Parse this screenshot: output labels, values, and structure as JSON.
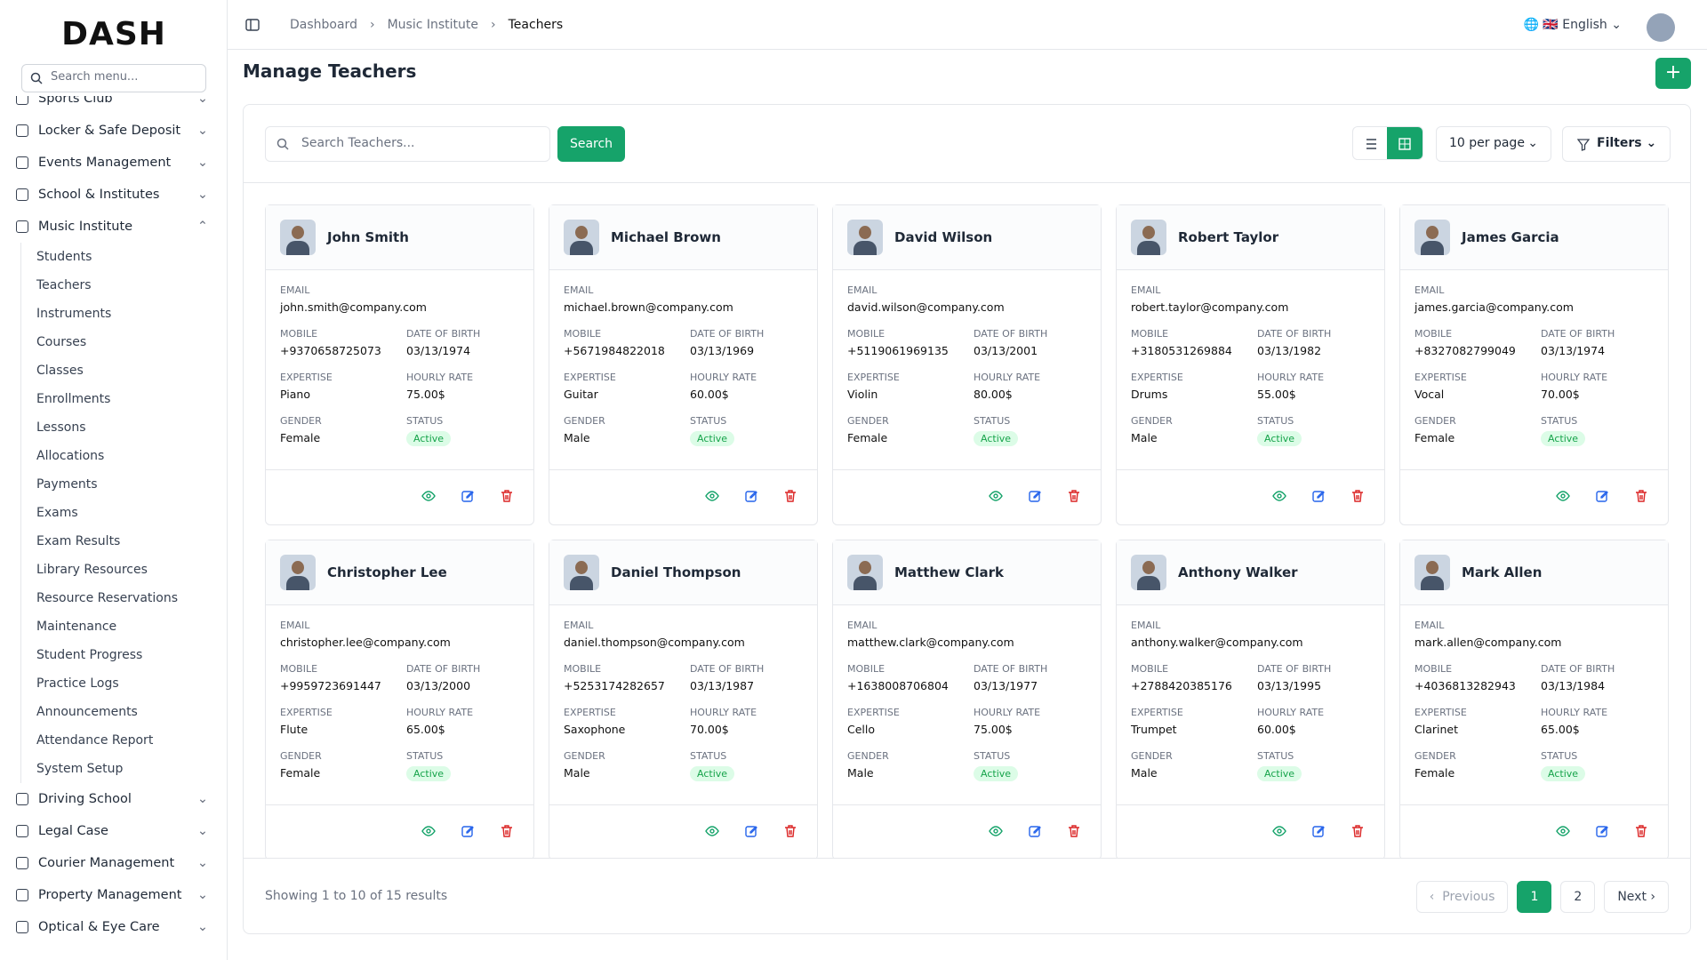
{
  "sidebar": {
    "logo": "DASH",
    "search_placeholder": "Search menu...",
    "menu": [
      {
        "label": "Sports Club"
      },
      {
        "label": "Locker & Safe Deposit"
      },
      {
        "label": "Events Management"
      },
      {
        "label": "School & Institutes"
      },
      {
        "label": "Music Institute",
        "expanded": true,
        "children": [
          "Students",
          "Teachers",
          "Instruments",
          "Courses",
          "Classes",
          "Enrollments",
          "Lessons",
          "Allocations",
          "Payments",
          "Exams",
          "Exam Results",
          "Library Resources",
          "Resource Reservations",
          "Maintenance",
          "Student Progress",
          "Practice Logs",
          "Announcements",
          "Attendance Report",
          "System Setup"
        ]
      },
      {
        "label": "Driving School"
      },
      {
        "label": "Legal Case"
      },
      {
        "label": "Courier Management"
      },
      {
        "label": "Property Management"
      },
      {
        "label": "Optical & Eye Care"
      }
    ]
  },
  "header": {
    "breadcrumbs": [
      "Dashboard",
      "Music Institute",
      "Teachers"
    ],
    "language": "English"
  },
  "page": {
    "title": "Manage Teachers",
    "search_placeholder": "Search Teachers...",
    "search_button": "Search",
    "per_page": "10 per page",
    "filters": "Filters"
  },
  "field_labels": {
    "email": "EMAIL",
    "mobile": "MOBILE",
    "dob": "DATE OF BIRTH",
    "expertise": "EXPERTISE",
    "hourly_rate": "HOURLY RATE",
    "gender": "GENDER",
    "status": "STATUS"
  },
  "teachers": [
    {
      "name": "John Smith",
      "email": "john.smith@company.com",
      "mobile": "+9370658725073",
      "dob": "03/13/1974",
      "expertise": "Piano",
      "hourly_rate": "75.00$",
      "gender": "Female",
      "status": "Active"
    },
    {
      "name": "Michael Brown",
      "email": "michael.brown@company.com",
      "mobile": "+5671984822018",
      "dob": "03/13/1969",
      "expertise": "Guitar",
      "hourly_rate": "60.00$",
      "gender": "Male",
      "status": "Active"
    },
    {
      "name": "David Wilson",
      "email": "david.wilson@company.com",
      "mobile": "+5119061969135",
      "dob": "03/13/2001",
      "expertise": "Violin",
      "hourly_rate": "80.00$",
      "gender": "Female",
      "status": "Active"
    },
    {
      "name": "Robert Taylor",
      "email": "robert.taylor@company.com",
      "mobile": "+3180531269884",
      "dob": "03/13/1982",
      "expertise": "Drums",
      "hourly_rate": "55.00$",
      "gender": "Male",
      "status": "Active"
    },
    {
      "name": "James Garcia",
      "email": "james.garcia@company.com",
      "mobile": "+8327082799049",
      "dob": "03/13/1974",
      "expertise": "Vocal",
      "hourly_rate": "70.00$",
      "gender": "Female",
      "status": "Active"
    },
    {
      "name": "Christopher Lee",
      "email": "christopher.lee@company.com",
      "mobile": "+9959723691447",
      "dob": "03/13/2000",
      "expertise": "Flute",
      "hourly_rate": "65.00$",
      "gender": "Female",
      "status": "Active"
    },
    {
      "name": "Daniel Thompson",
      "email": "daniel.thompson@company.com",
      "mobile": "+5253174282657",
      "dob": "03/13/1987",
      "expertise": "Saxophone",
      "hourly_rate": "70.00$",
      "gender": "Male",
      "status": "Active"
    },
    {
      "name": "Matthew Clark",
      "email": "matthew.clark@company.com",
      "mobile": "+1638008706804",
      "dob": "03/13/1977",
      "expertise": "Cello",
      "hourly_rate": "75.00$",
      "gender": "Male",
      "status": "Active"
    },
    {
      "name": "Anthony Walker",
      "email": "anthony.walker@company.com",
      "mobile": "+2788420385176",
      "dob": "03/13/1995",
      "expertise": "Trumpet",
      "hourly_rate": "60.00$",
      "gender": "Male",
      "status": "Active"
    },
    {
      "name": "Mark Allen",
      "email": "mark.allen@company.com",
      "mobile": "+4036813282943",
      "dob": "03/13/1984",
      "expertise": "Clarinet",
      "hourly_rate": "65.00$",
      "gender": "Female",
      "status": "Active"
    }
  ],
  "pagination": {
    "summary": "Showing 1 to 10 of 15 results",
    "previous": "Previous",
    "pages": [
      "1",
      "2"
    ],
    "current_page": 0,
    "next": "Next"
  }
}
